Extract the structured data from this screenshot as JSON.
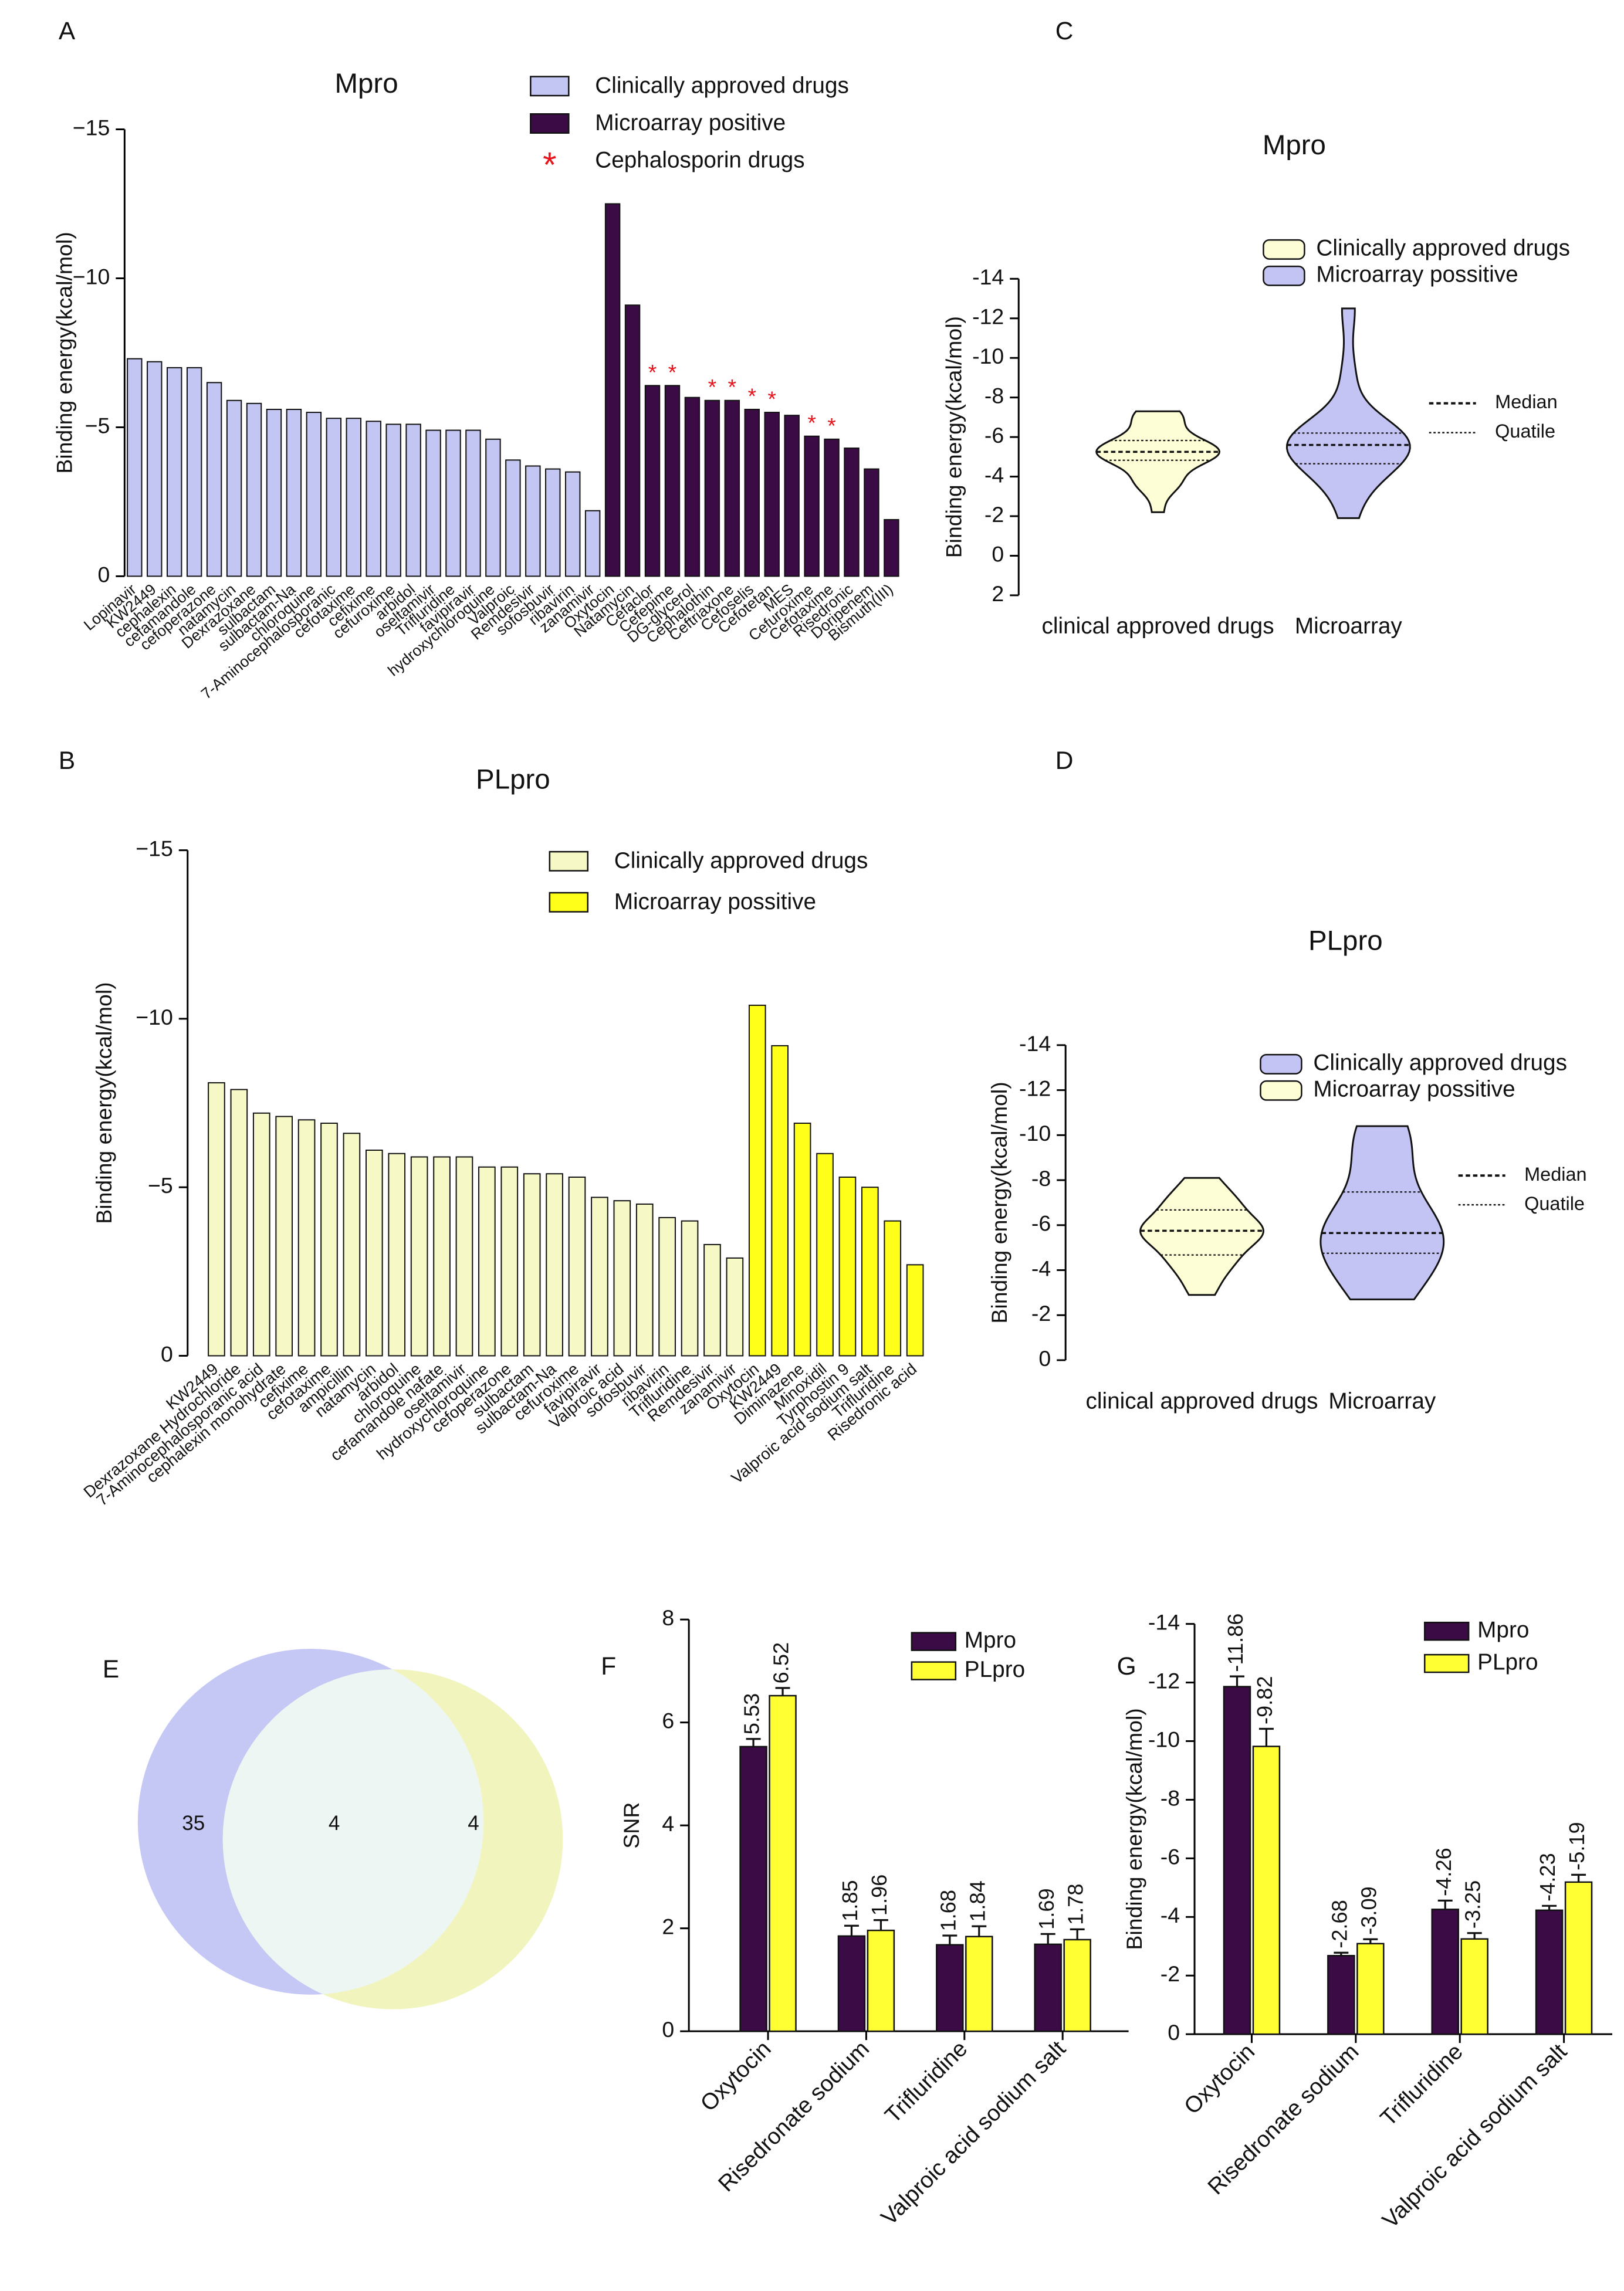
{
  "chart_data": [
    {
      "type": "bar",
      "panel_label": "A",
      "title": "Mpro",
      "y_label": "Binding energy(kcal/mol)",
      "categories": [
        "Lopinavir",
        "KW2449",
        "cephalexin",
        "cefamandole",
        "cefoperazone",
        "natamycin",
        "Dexrazoxane",
        "sulbactam",
        "sulbactam-Na",
        "chloroquine",
        "7-Aminocephalosporanic",
        "cefotaxime",
        "cefixime",
        "cefuroxime",
        "arbidol",
        "oseltamivir",
        "Trifluridine",
        "favipiravir",
        "hydroxychloroquine",
        "Valproic",
        "Remdesivir",
        "sofosbuvir",
        "ribavirin",
        "zanamivir",
        "Oxytocin",
        "Natamycin",
        "Cefaclor",
        "Cefepime",
        "DG-glycerol",
        "Cephalothin",
        "Ceftriaxone",
        "Cefoselis",
        "Cefotetan",
        "MES",
        "Cefuroxime",
        "Cefotaxime",
        "Risedronic",
        "Doripenem",
        "Bismuth(III)"
      ],
      "series": [
        {
          "name": "Clinically approved drugs",
          "color": "#c3c6f2",
          "values": [
            -7.3,
            -7.2,
            -7.0,
            -7.0,
            -6.5,
            -5.9,
            -5.8,
            -5.6,
            -5.6,
            -5.5,
            -5.3,
            -5.3,
            -5.2,
            -5.1,
            -5.1,
            -4.9,
            -4.9,
            -4.9,
            -4.6,
            -3.9,
            -3.7,
            -3.6,
            -3.5,
            -2.2,
            null,
            null,
            null,
            null,
            null,
            null,
            null,
            null,
            null,
            null,
            null,
            null,
            null,
            null,
            null
          ]
        },
        {
          "name": "Microarray positive",
          "color": "#3b0b45",
          "values": [
            null,
            null,
            null,
            null,
            null,
            null,
            null,
            null,
            null,
            null,
            null,
            null,
            null,
            null,
            null,
            null,
            null,
            null,
            null,
            null,
            null,
            null,
            null,
            null,
            -12.5,
            -9.1,
            -6.4,
            -6.4,
            -6.0,
            -5.9,
            -5.9,
            -5.6,
            -5.5,
            -5.4,
            -4.7,
            -4.6,
            -4.3,
            -3.6,
            -1.9
          ]
        }
      ],
      "markers": {
        "name": "Cephalosporin drugs",
        "symbol": "*",
        "color": "#e8141c",
        "indices": [
          26,
          27,
          29,
          30,
          31,
          32,
          34,
          35
        ]
      },
      "ylim": [
        0,
        -15
      ],
      "yticks": [
        {
          "value": -15,
          "label": "−15"
        },
        {
          "value": -10,
          "label": "−10"
        },
        {
          "value": -5,
          "label": "−5"
        },
        0
      ]
    },
    {
      "type": "violin",
      "panel_label": "C",
      "title": "Mpro",
      "y_label": "Binding energy(kcal/mol)",
      "categories": [
        "clinical approved drugs",
        "Microarray"
      ],
      "series": [
        {
          "name": "Clinically approved drugs",
          "color": "#fdfdd6",
          "legend_color": "#fdfdd6",
          "values": [
            -7.3,
            -7.2,
            -7.0,
            -7.0,
            -6.5,
            -5.9,
            -5.8,
            -5.6,
            -5.6,
            -5.5,
            -5.3,
            -5.3,
            -5.2,
            -5.1,
            -5.1,
            -4.9,
            -4.9,
            -4.9,
            -4.6,
            -3.9,
            -3.7,
            -3.6,
            -3.5,
            -2.2
          ]
        },
        {
          "name": "Microarray possitive",
          "color": "#c4c4f4",
          "legend_color": "#c4c4f4",
          "values": [
            -12.5,
            -9.1,
            -6.4,
            -6.4,
            -6.0,
            -5.9,
            -5.9,
            -5.6,
            -5.5,
            -5.4,
            -4.7,
            -4.6,
            -4.3,
            -3.6,
            -1.9
          ]
        }
      ],
      "median_label": "Median",
      "quartile_label": "Quatile",
      "ylim": [
        2,
        -14
      ],
      "yticks": [
        -14,
        -12,
        -10,
        -8,
        -6,
        -4,
        -2,
        0,
        2
      ]
    },
    {
      "type": "bar",
      "panel_label": "B",
      "title": "PLpro",
      "y_label": "Binding energy(kcal/mol)",
      "categories": [
        "KW2449",
        "Dexrazoxane Hydrochloride",
        "7-Aminocephalosporanic acid",
        "cephalexin monohydrate",
        "cefixime",
        "cefotaxime",
        "ampicillin",
        "natamycin",
        "arbidol",
        "chloroquine",
        "cefamandole nafate",
        "oseltamivir",
        "hydroxychloroquine",
        "cefoperazone",
        "sulbactam",
        "sulbactam-Na",
        "cefuroxime",
        "favipiravir",
        "Valproic acid",
        "sofosbuvir",
        "ribavirin",
        "Trifluridine",
        "Remdesivir",
        "zanamivir",
        "Oxytocin",
        "KW2449",
        "Diminazene",
        "Minoxidil",
        "Tyrphostin 9",
        "Valproic acid sodium salt",
        "Trifluridine",
        "Risedronic acid"
      ],
      "series": [
        {
          "name": "Clinically approved drugs",
          "color": "#f6f8c6",
          "values": [
            -8.1,
            -7.9,
            -7.2,
            -7.1,
            -7.0,
            -6.9,
            -6.6,
            -6.1,
            -6.0,
            -5.9,
            -5.9,
            -5.9,
            -5.6,
            -5.6,
            -5.4,
            -5.4,
            -5.3,
            -4.7,
            -4.6,
            -4.5,
            -4.1,
            -4.0,
            -3.3,
            -2.9,
            null,
            null,
            null,
            null,
            null,
            null,
            null,
            null
          ]
        },
        {
          "name": "Microarray possitive",
          "color": "#ffff1a",
          "values": [
            null,
            null,
            null,
            null,
            null,
            null,
            null,
            null,
            null,
            null,
            null,
            null,
            null,
            null,
            null,
            null,
            null,
            null,
            null,
            null,
            null,
            null,
            null,
            null,
            -10.4,
            -9.2,
            -6.9,
            -6.0,
            -5.3,
            -5.0,
            -4.0,
            -2.7
          ]
        }
      ],
      "ylim": [
        0,
        -15
      ],
      "yticks": [
        {
          "value": -15,
          "label": "−15"
        },
        {
          "value": -10,
          "label": "−10"
        },
        {
          "value": -5,
          "label": "−5"
        },
        0
      ]
    },
    {
      "type": "violin",
      "panel_label": "D",
      "title": "PLpro",
      "y_label": "Binding energy(kcal/mol)",
      "categories": [
        "clinical approved drugs",
        "Microarray"
      ],
      "series": [
        {
          "name": "Clinically approved drugs",
          "color": "#fdfdd6",
          "legend_color": "#c4c4f4",
          "values": [
            -8.1,
            -7.9,
            -7.2,
            -7.1,
            -7.0,
            -6.9,
            -6.6,
            -6.1,
            -6.0,
            -5.9,
            -5.9,
            -5.9,
            -5.6,
            -5.6,
            -5.4,
            -5.4,
            -5.3,
            -4.7,
            -4.6,
            -4.5,
            -4.1,
            -4.0,
            -3.3,
            -2.9
          ]
        },
        {
          "name": "Microarray possitive",
          "color": "#c4c4f4",
          "legend_color": "#fdfdd6",
          "values": [
            -10.4,
            -9.2,
            -6.9,
            -6.0,
            -5.3,
            -5.0,
            -4.0,
            -2.7
          ]
        }
      ],
      "median_label": "Median",
      "quartile_label": "Quatile",
      "ylim": [
        0,
        -14
      ],
      "yticks": [
        -14,
        -12,
        -10,
        -8,
        -6,
        -4,
        -2,
        0
      ]
    },
    {
      "type": "venn",
      "panel_label": "E",
      "colors": [
        "#c5c8f5",
        "#f2f4be"
      ],
      "overlap_color": "#eef6f3",
      "values": [
        35,
        4,
        4
      ]
    },
    {
      "type": "errorbar",
      "panel_label": "F",
      "y_label": "SNR",
      "categories": [
        "Oxytocin",
        "Risedronate sodium",
        "Trifluridine",
        "Valproic acid sodium salt"
      ],
      "series": [
        {
          "name": "Mpro",
          "color": "#3b0b45",
          "values": [
            5.53,
            1.85,
            1.68,
            1.69
          ],
          "errors": [
            0.15,
            0.2,
            0.18,
            0.2
          ]
        },
        {
          "name": "PLpro",
          "color": "#ffff33",
          "values": [
            6.52,
            1.96,
            1.84,
            1.78
          ],
          "errors": [
            0.15,
            0.2,
            0.2,
            0.2
          ]
        }
      ],
      "ylim": [
        0,
        8
      ],
      "yticks": [
        0,
        2,
        4,
        6,
        8
      ]
    },
    {
      "type": "errorbar",
      "panel_label": "G",
      "y_label": "Binding energy(kcal/mol)",
      "categories": [
        "Oxytocin",
        "Risedronate sodium",
        "Trifluridine",
        "Valproic acid sodium salt"
      ],
      "series": [
        {
          "name": "Mpro",
          "color": "#3b0b45",
          "values": [
            -11.86,
            -2.68,
            -4.26,
            -4.23
          ],
          "errors": [
            0.35,
            0.1,
            0.3,
            0.15
          ]
        },
        {
          "name": "PLpro",
          "color": "#ffff33",
          "values": [
            -9.82,
            -3.09,
            -3.25,
            -5.19
          ],
          "errors": [
            0.6,
            0.15,
            0.2,
            0.25
          ]
        }
      ],
      "ylim": [
        0,
        -14
      ],
      "yticks": [
        -14,
        -12,
        -10,
        -8,
        -6,
        -4,
        -2,
        0
      ]
    }
  ]
}
